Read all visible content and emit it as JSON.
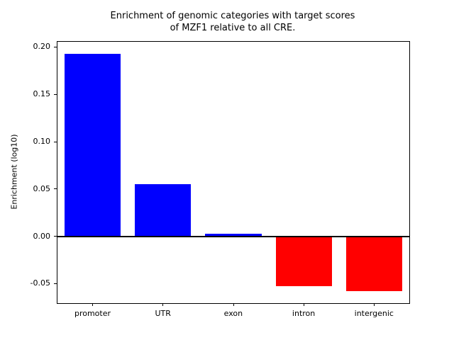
{
  "chart_data": {
    "type": "bar",
    "title": "Enrichment of genomic categories with target scores\nof MZF1 relative to all CRE.",
    "xlabel": "",
    "ylabel": "Enrichment (log10)",
    "categories": [
      "promoter",
      "UTR",
      "exon",
      "intron",
      "intergenic"
    ],
    "values": [
      0.193,
      0.055,
      0.003,
      -0.053,
      -0.058
    ],
    "bar_colors": [
      "#0000ff",
      "#0000ff",
      "#0000ff",
      "#ff0000",
      "#ff0000"
    ],
    "positive_color": "#0000ff",
    "negative_color": "#ff0000",
    "ylim": [
      -0.0706,
      0.2056
    ],
    "yticks": [
      -0.05,
      0.0,
      0.05,
      0.1,
      0.15,
      0.2
    ],
    "ytick_labels": [
      "-0.05",
      "0.00",
      "0.05",
      "0.10",
      "0.15",
      "0.20"
    ],
    "grid": false,
    "zero_line": true,
    "legend": null
  }
}
